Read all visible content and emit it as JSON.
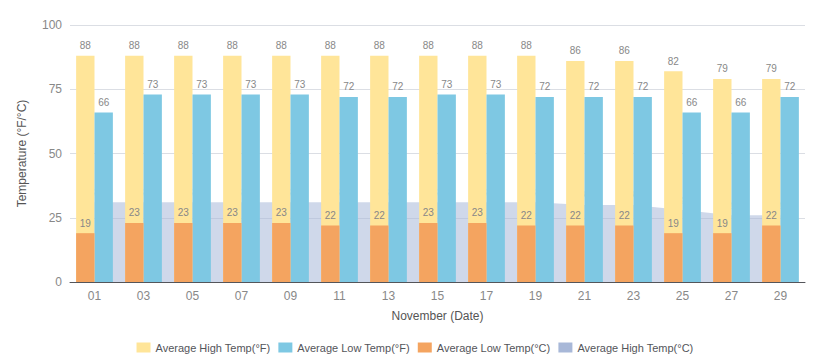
{
  "chart_data": {
    "type": "bar",
    "categories": [
      "01",
      "03",
      "05",
      "07",
      "09",
      "11",
      "13",
      "15",
      "17",
      "19",
      "21",
      "23",
      "25",
      "27",
      "29"
    ],
    "xlabel": "November (Date)",
    "ylabel": "Temperature (°F/°C)",
    "series": [
      {
        "name": "Average High Temp(°F)",
        "type": "bar",
        "color": "#FFE599",
        "values": [
          88,
          88,
          88,
          88,
          88,
          88,
          88,
          88,
          88,
          88,
          86,
          86,
          82,
          79,
          79
        ]
      },
      {
        "name": "Average Low Temp(°F)",
        "type": "bar",
        "color": "#7EC8E3",
        "values": [
          66,
          73,
          73,
          73,
          73,
          72,
          72,
          73,
          73,
          72,
          72,
          72,
          66,
          66,
          72
        ]
      },
      {
        "name": "Average Low Temp(°C)",
        "type": "bar",
        "color": "#F4A460",
        "values": [
          19,
          23,
          23,
          23,
          23,
          22,
          22,
          23,
          23,
          22,
          22,
          22,
          19,
          19,
          22
        ]
      },
      {
        "name": "Average High Temp(°C)",
        "type": "area",
        "color": "#A8B8D8",
        "values": [
          31,
          31,
          31,
          31,
          31,
          31,
          31,
          31,
          31,
          31,
          30,
          30,
          28,
          26,
          26
        ]
      }
    ],
    "ylim": [
      0,
      100
    ],
    "yticks": [
      0,
      25,
      50,
      75,
      100
    ],
    "grid": true,
    "legend": "bottom",
    "data_labels": true
  }
}
